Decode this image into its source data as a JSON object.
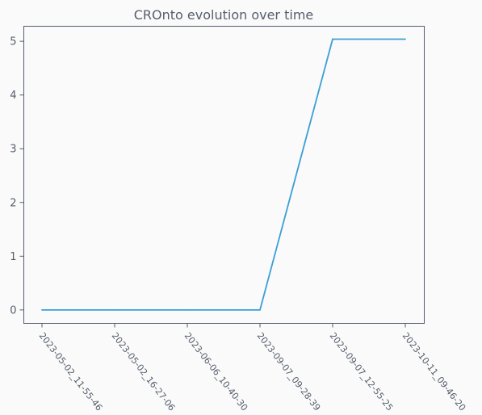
{
  "chart_data": {
    "type": "line",
    "title": "CROnto evolution over time",
    "xlabel": "",
    "ylabel": "",
    "categories": [
      "2023-05-02_11-55-46",
      "2023-05-02_16-27-06",
      "2023-06-06_10-40-30",
      "2023-09-07_09-28-39",
      "2023-09-07_12-55-25",
      "2023-10-11_09-46-20"
    ],
    "series": [
      {
        "values": [
          0,
          0,
          0,
          0,
          5.04,
          5.04
        ],
        "color": "#3a9fd4"
      }
    ],
    "yticks": [
      0,
      1,
      2,
      3,
      4,
      5
    ],
    "ylim": [
      -0.25,
      5.28
    ],
    "grid": false,
    "legend": "none",
    "colors": {
      "background": "#fafafa",
      "axis": "#555e6b",
      "text": "#555e6b",
      "line": "#3a9fd4"
    }
  }
}
